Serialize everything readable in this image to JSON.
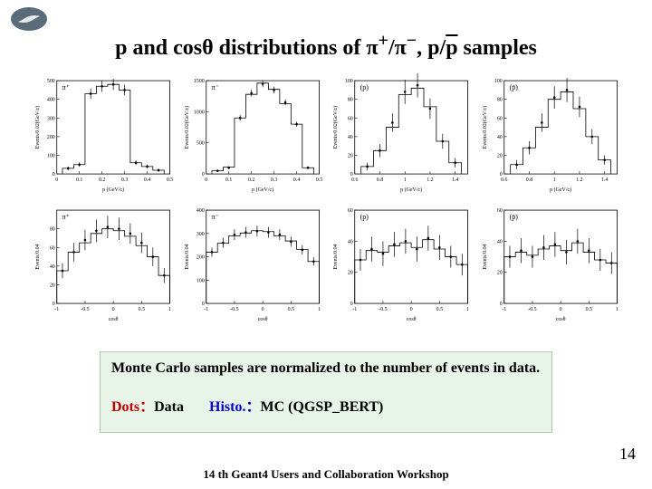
{
  "title_html": "p and cosθ distributions of π<sup>+</sup>/π<sup>−</sup>, p/<span class=\"pbar\">p</span> samples",
  "logo": {
    "fill": "#5a6b7a",
    "swirl": "#ffffff"
  },
  "axis": {
    "tick_color": "#000000",
    "line_color": "#000000",
    "font_size": 6,
    "ylabel_top": "Events/0.02(GeV/c)",
    "ylabel_bot": "Events/0.04",
    "xlabel_top": "p (GeV/c)",
    "xlabel_bot": "cosθ"
  },
  "charts": [
    {
      "id": "pi_plus_p",
      "label": "π⁺",
      "type": "step+points",
      "xlim": [
        0,
        0.5
      ],
      "ylim": [
        0,
        500
      ],
      "xticks": [
        0,
        0.1,
        0.2,
        0.3,
        0.4,
        0.5
      ],
      "yticks": [
        0,
        100,
        200,
        300,
        400,
        500
      ],
      "x": [
        0.05,
        0.1,
        0.15,
        0.2,
        0.25,
        0.3,
        0.35,
        0.4,
        0.45
      ],
      "data": [
        30,
        50,
        430,
        470,
        480,
        450,
        60,
        40,
        20
      ],
      "mc": [
        30,
        50,
        430,
        470,
        480,
        450,
        60,
        40,
        20
      ],
      "err": [
        10,
        12,
        28,
        30,
        30,
        28,
        12,
        10,
        8
      ]
    },
    {
      "id": "pi_minus_p",
      "label": "π⁻",
      "type": "step+points",
      "xlim": [
        0,
        0.5
      ],
      "ylim": [
        0,
        1500
      ],
      "xticks": [
        0,
        0.1,
        0.2,
        0.3,
        0.4,
        0.5
      ],
      "yticks": [
        0,
        500,
        1000,
        1500
      ],
      "x": [
        0.05,
        0.1,
        0.15,
        0.2,
        0.25,
        0.3,
        0.35,
        0.4,
        0.45
      ],
      "data": [
        50,
        100,
        900,
        1300,
        1450,
        1350,
        1150,
        800,
        100
      ],
      "mc": [
        50,
        110,
        900,
        1280,
        1460,
        1360,
        1130,
        800,
        100
      ],
      "err": [
        20,
        25,
        45,
        52,
        55,
        53,
        48,
        40,
        20
      ]
    },
    {
      "id": "proton_p",
      "label": "(p)",
      "type": "step+points",
      "xlim": [
        0.6,
        1.5
      ],
      "ylim": [
        0,
        100
      ],
      "xticks": [
        0.6,
        0.8,
        1.0,
        1.2,
        1.4
      ],
      "yticks": [
        0,
        20,
        40,
        60,
        80,
        100
      ],
      "x": [
        0.7,
        0.8,
        0.9,
        1.0,
        1.1,
        1.2,
        1.3,
        1.4
      ],
      "data": [
        8,
        25,
        55,
        88,
        95,
        70,
        35,
        12
      ],
      "mc": [
        8,
        25,
        50,
        85,
        92,
        72,
        35,
        12
      ],
      "err": [
        4,
        7,
        10,
        13,
        13,
        11,
        8,
        5
      ]
    },
    {
      "id": "pbar_p",
      "label": "(p̄)",
      "type": "step+points",
      "xlim": [
        0.6,
        1.5
      ],
      "ylim": [
        0,
        100
      ],
      "xticks": [
        0.6,
        0.8,
        1.0,
        1.2,
        1.4
      ],
      "yticks": [
        0,
        20,
        40,
        60,
        80,
        100
      ],
      "x": [
        0.7,
        0.8,
        0.9,
        1.0,
        1.1,
        1.2,
        1.3,
        1.4
      ],
      "data": [
        10,
        28,
        55,
        82,
        90,
        72,
        40,
        15
      ],
      "mc": [
        10,
        28,
        50,
        80,
        88,
        70,
        40,
        15
      ],
      "err": [
        5,
        7,
        10,
        12,
        13,
        11,
        8,
        5
      ]
    },
    {
      "id": "pi_plus_cos",
      "label": "π⁺",
      "type": "step+points",
      "xlim": [
        -1,
        1
      ],
      "ylim": [
        0,
        100
      ],
      "xticks": [
        -1,
        -0.5,
        0,
        0.5,
        1
      ],
      "yticks": [
        0,
        20,
        40,
        60,
        80
      ],
      "x": [
        -0.9,
        -0.7,
        -0.5,
        -0.3,
        -0.1,
        0.1,
        0.3,
        0.5,
        0.7,
        0.9
      ],
      "data": [
        35,
        55,
        68,
        78,
        82,
        80,
        75,
        65,
        50,
        30
      ],
      "mc": [
        35,
        55,
        65,
        75,
        80,
        78,
        72,
        62,
        50,
        30
      ],
      "err": [
        8,
        10,
        11,
        12,
        12,
        12,
        11,
        11,
        10,
        8
      ]
    },
    {
      "id": "pi_minus_cos",
      "label": "π⁻",
      "type": "step+points",
      "xlim": [
        -1,
        1
      ],
      "ylim": [
        0,
        400
      ],
      "xticks": [
        -1,
        -0.5,
        0,
        0.5,
        1
      ],
      "yticks": [
        0,
        100,
        200,
        300,
        400
      ],
      "x": [
        -0.9,
        -0.7,
        -0.5,
        -0.3,
        -0.1,
        0.1,
        0.3,
        0.5,
        0.7,
        0.9
      ],
      "data": [
        220,
        260,
        295,
        305,
        310,
        305,
        295,
        265,
        230,
        180
      ],
      "mc": [
        220,
        258,
        290,
        302,
        312,
        308,
        290,
        268,
        232,
        180
      ],
      "err": [
        20,
        22,
        23,
        23,
        24,
        23,
        23,
        22,
        20,
        18
      ]
    },
    {
      "id": "proton_cos",
      "label": "(p)",
      "type": "step+points",
      "xlim": [
        -1,
        1
      ],
      "ylim": [
        0,
        60
      ],
      "xticks": [
        -1,
        -0.5,
        0,
        0.5,
        1
      ],
      "yticks": [
        0,
        20,
        40,
        60
      ],
      "x": [
        -0.9,
        -0.7,
        -0.5,
        -0.3,
        -0.1,
        0.1,
        0.3,
        0.5,
        0.7,
        0.9
      ],
      "data": [
        28,
        35,
        32,
        38,
        40,
        35,
        42,
        36,
        30,
        25
      ],
      "mc": [
        28,
        34,
        33,
        37,
        39,
        36,
        41,
        35,
        30,
        25
      ],
      "err": [
        7,
        8,
        8,
        8,
        8,
        8,
        8,
        8,
        7,
        7
      ]
    },
    {
      "id": "pbar_cos",
      "label": "(p̄)",
      "type": "step+points",
      "xlim": [
        -1,
        1
      ],
      "ylim": [
        0,
        60
      ],
      "xticks": [
        -1,
        -0.5,
        0,
        0.5,
        1
      ],
      "yticks": [
        0,
        20,
        40,
        60
      ],
      "x": [
        -0.9,
        -0.7,
        -0.5,
        -0.3,
        -0.1,
        0.1,
        0.3,
        0.5,
        0.7,
        0.9
      ],
      "data": [
        30,
        34,
        30,
        36,
        38,
        33,
        40,
        34,
        28,
        26
      ],
      "mc": [
        30,
        33,
        31,
        35,
        37,
        34,
        39,
        33,
        28,
        26
      ],
      "err": [
        7,
        8,
        7,
        8,
        8,
        8,
        8,
        8,
        7,
        7
      ]
    }
  ],
  "note": {
    "line1": "Monte Carlo samples are normalized to the number of events in data.",
    "dots": "Dots：",
    "data": "Data",
    "hist": "Histo.：",
    "mc": "MC (QGSP_BERT)"
  },
  "footer": "14 th Geant4 Users and Collaboration Workshop",
  "page": "14",
  "colors": {
    "point": "#000000",
    "step": "#000000",
    "bg": "#ffffff"
  }
}
